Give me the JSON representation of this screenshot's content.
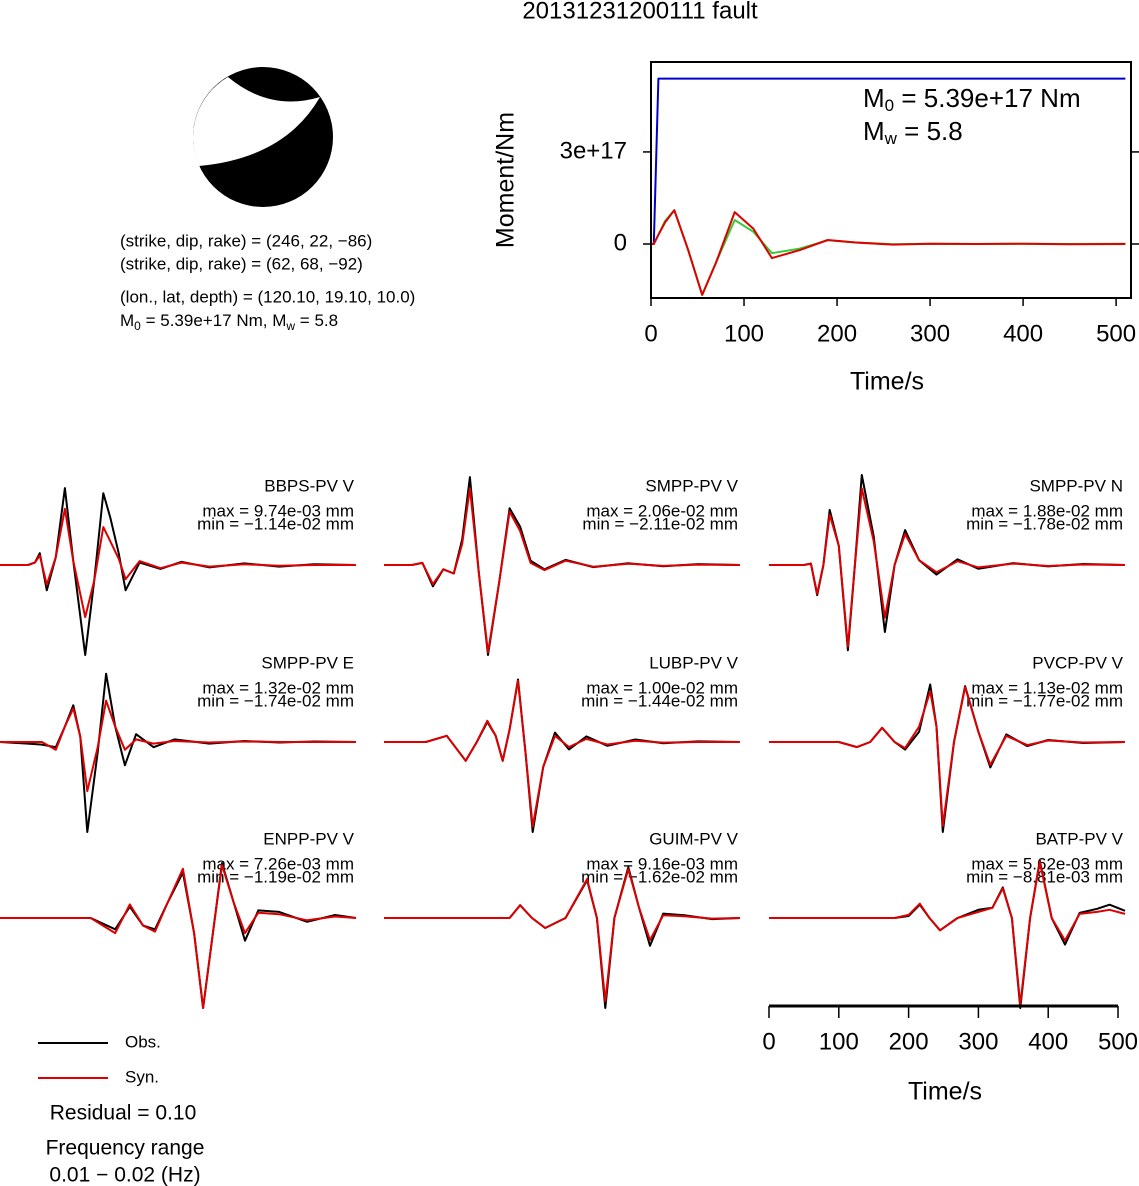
{
  "title": "20131231200111 fault",
  "focal_mechanism": {
    "planes": [
      "(strike, dip, rake) = (246, 22, −86)",
      "(strike, dip, rake) = (62, 68, −92)"
    ],
    "location": "(lon., lat, depth) = (120.10, 19.10, 10.0)",
    "magnitude": {
      "m0_symbol": "M",
      "m0_sub": "0",
      "m0_text": " = 5.39e+17 Nm, ",
      "mw_symbol": "M",
      "mw_sub": "w",
      "mw_text": " = 5.8"
    }
  },
  "legend": [
    "Obs.",
    "Syn."
  ],
  "residual": "Residual = 0.10",
  "frequency": [
    "Frequency range",
    "0.01 − 0.02 (Hz)"
  ],
  "chart_data": [
    {
      "type": "line",
      "xlabel": "Time/s",
      "ylabel": "Moment/Nm",
      "annotations": [
        {
          "symbol": "M",
          "sub": "0",
          "text": " = 5.39e+17 Nm"
        },
        {
          "symbol": "M",
          "sub": "w",
          "text": " = 5.8"
        }
      ],
      "xlim": [
        0,
        516
      ],
      "ylim": [
        -1.76e+17,
        5.93e+17
      ],
      "xticks": [
        0,
        100,
        200,
        300,
        400,
        500
      ],
      "yticks": [
        0,
        {
          "value": 3e+17,
          "label": "3e+17"
        }
      ],
      "x": [
        0,
        3,
        8,
        15,
        25,
        40,
        55,
        70,
        90,
        110,
        130,
        160,
        190,
        220,
        260,
        300,
        350,
        400,
        450,
        510
      ],
      "series": [
        {
          "color": "#0000cc",
          "values": [
            0,
            0,
            5.39e+17,
            5.39e+17,
            5.39e+17,
            5.39e+17,
            5.39e+17,
            5.39e+17,
            5.39e+17,
            5.39e+17,
            5.39e+17,
            5.39e+17,
            5.39e+17,
            5.39e+17,
            5.39e+17,
            5.39e+17,
            5.39e+17,
            5.39e+17,
            5.39e+17,
            5.39e+17
          ]
        },
        {
          "color": "#33cc33",
          "values": [
            0,
            0,
            3e+16,
            7.5e+16,
            1.1e+17,
            -2e+16,
            -1.66e+17,
            -6e+16,
            7.8e+16,
            4e+16,
            -3e+16,
            -1.5e+16,
            1.2e+16,
            5000000000000000.0,
            -1000000000000000.0,
            1000000000000000.0,
            0,
            1000000000000000.0,
            0,
            1000000000000000.0
          ]
        },
        {
          "color": "#dd0000",
          "values": [
            0,
            0,
            3e+16,
            7e+16,
            1.1e+17,
            -2e+16,
            -1.66e+17,
            -6e+16,
            1.04e+17,
            5e+16,
            -4.6e+16,
            -2e+16,
            1.3e+16,
            5000000000000000.0,
            -2000000000000000.0,
            1000000000000000.0,
            0,
            1000000000000000.0,
            -1000000000000000.0,
            0
          ]
        }
      ]
    },
    {
      "type": "line",
      "title": "BBPS-PV V",
      "annotations": [
        "max = 9.74e-03 mm",
        "min = −1.14e-02 mm"
      ],
      "xlim": [
        0,
        510
      ],
      "x": [
        0,
        40,
        50,
        57,
        67,
        80,
        93,
        105,
        122,
        135,
        148,
        158,
        170,
        180,
        200,
        230,
        260,
        300,
        350,
        400,
        450,
        510
      ],
      "series": [
        {
          "color": "#000000",
          "values": [
            0,
            0,
            0.0003,
            0.0015,
            -0.0032,
            0.001,
            0.00974,
            0.0005,
            -0.0114,
            -0.002,
            0.0091,
            0.006,
            0.0015,
            -0.0032,
            0.0003,
            -0.0005,
            0.0004,
            -0.0003,
            0.0002,
            -0.0002,
            0.0001,
            0
          ]
        },
        {
          "color": "#dd0000",
          "values": [
            0,
            0,
            0.0003,
            0.0012,
            -0.0025,
            0.001,
            0.0071,
            0.0005,
            -0.0066,
            -0.002,
            0.0048,
            0.003,
            0.0008,
            -0.0018,
            0.0005,
            -0.0004,
            0.0003,
            -0.0002,
            0.0001,
            -0.0001,
            0,
            0
          ]
        }
      ]
    },
    {
      "type": "line",
      "title": "SMPP-PV V",
      "annotations": [
        "max = 2.06e-02 mm",
        "min = −2.11e-02 mm"
      ],
      "xlim": [
        0,
        510
      ],
      "x": [
        0,
        40,
        55,
        70,
        85,
        100,
        112,
        123,
        136,
        149,
        165,
        180,
        195,
        210,
        230,
        260,
        300,
        350,
        400,
        450,
        510
      ],
      "series": [
        {
          "color": "#000000",
          "values": [
            0,
            0,
            0.0005,
            -0.005,
            -0.001,
            -0.002,
            0.006,
            0.0206,
            -0.002,
            -0.0211,
            -0.004,
            0.0133,
            0.009,
            0.001,
            -0.001,
            0.0012,
            -0.0005,
            0.0004,
            -0.0003,
            0.0002,
            0
          ]
        },
        {
          "color": "#dd0000",
          "values": [
            0,
            0,
            0.0005,
            -0.0045,
            -0.001,
            -0.002,
            0.005,
            0.018,
            -0.002,
            -0.0205,
            -0.004,
            0.0125,
            0.008,
            0.0005,
            -0.0012,
            0.001,
            -0.0004,
            0.0003,
            -0.0002,
            0.0001,
            0
          ]
        }
      ]
    },
    {
      "type": "line",
      "title": "SMPP-PV N",
      "annotations": [
        "max = 1.88e-02 mm",
        "min = −1.78e-02 mm"
      ],
      "xlim": [
        0,
        510
      ],
      "x": [
        0,
        50,
        60,
        69,
        78,
        87,
        100,
        113,
        123,
        133,
        150,
        166,
        180,
        195,
        215,
        240,
        270,
        300,
        350,
        400,
        450,
        510
      ],
      "series": [
        {
          "color": "#000000",
          "values": [
            0,
            0,
            0.0003,
            -0.0063,
            0,
            0.0115,
            0.004,
            -0.0178,
            0,
            0.0188,
            0.006,
            -0.014,
            0,
            0.0073,
            0.001,
            -0.002,
            0.0012,
            -0.0008,
            0.0004,
            -0.0003,
            0.0002,
            0
          ]
        },
        {
          "color": "#dd0000",
          "values": [
            0,
            0,
            0.0003,
            -0.006,
            0,
            0.0105,
            0.004,
            -0.017,
            0,
            0.016,
            0.005,
            -0.011,
            0,
            0.0065,
            0.001,
            -0.0015,
            0.0008,
            -0.0005,
            0.0003,
            -0.0002,
            0.0001,
            0
          ]
        }
      ]
    },
    {
      "type": "line",
      "title": "SMPP-PV E",
      "annotations": [
        "max = 1.32e-02 mm",
        "min = −1.74e-02 mm"
      ],
      "xlim": [
        0,
        510
      ],
      "x": [
        0,
        40,
        60,
        80,
        93,
        105,
        115,
        125,
        140,
        152,
        165,
        179,
        195,
        220,
        250,
        300,
        350,
        400,
        450,
        510
      ],
      "series": [
        {
          "color": "#000000",
          "values": [
            0,
            -0.0003,
            -0.0005,
            -0.001,
            0.003,
            0.0071,
            0.001,
            -0.0174,
            -0.002,
            0.0132,
            0.003,
            -0.0045,
            0.0015,
            -0.001,
            0.0005,
            -0.0003,
            0.0002,
            -0.0001,
            0.0001,
            0
          ]
        },
        {
          "color": "#dd0000",
          "values": [
            0,
            0,
            0,
            -0.0015,
            0.003,
            0.0065,
            0.001,
            -0.0095,
            -0.001,
            0.008,
            0.003,
            -0.0015,
            0.0005,
            -0.0003,
            0.0002,
            -0.0001,
            0.0001,
            0,
            0,
            0
          ]
        }
      ]
    },
    {
      "type": "line",
      "title": "LUBP-PV V",
      "annotations": [
        "max = 1.00e-02 mm",
        "min = −1.44e-02 mm"
      ],
      "xlim": [
        0,
        510
      ],
      "x": [
        0,
        60,
        90,
        117,
        133,
        148,
        160,
        170,
        180,
        192,
        203,
        213,
        228,
        245,
        265,
        290,
        320,
        360,
        400,
        450,
        510
      ],
      "series": [
        {
          "color": "#000000",
          "values": [
            0,
            0,
            0.001,
            -0.003,
            0,
            0.0032,
            0.001,
            -0.003,
            0.002,
            0.01,
            -0.002,
            -0.0144,
            -0.004,
            0.0015,
            -0.0012,
            0.0009,
            -0.0006,
            0.0004,
            -0.0002,
            0.0001,
            0
          ]
        },
        {
          "color": "#dd0000",
          "values": [
            0,
            0,
            0.001,
            -0.003,
            0,
            0.0034,
            0.001,
            -0.003,
            0.002,
            0.0098,
            -0.002,
            -0.0135,
            -0.004,
            0.001,
            -0.0008,
            0.0005,
            -0.0004,
            0.0002,
            -0.0001,
            0,
            0
          ]
        }
      ]
    },
    {
      "type": "line",
      "title": "PVCP-PV V",
      "annotations": [
        "max = 1.13e-02 mm",
        "min = −1.77e-02 mm"
      ],
      "xlim": [
        0,
        510
      ],
      "x": [
        0,
        100,
        126,
        145,
        162,
        180,
        195,
        215,
        231,
        240,
        249,
        265,
        281,
        300,
        317,
        340,
        370,
        400,
        450,
        510
      ],
      "series": [
        {
          "color": "#000000",
          "values": [
            0,
            0,
            -0.001,
            0,
            0.0028,
            0,
            -0.0015,
            0.002,
            0.0113,
            0.003,
            -0.0177,
            0,
            0.011,
            0.002,
            -0.005,
            0.0015,
            -0.0008,
            0.0004,
            -0.0002,
            0
          ]
        },
        {
          "color": "#dd0000",
          "values": [
            0,
            0,
            -0.001,
            0,
            0.0028,
            0,
            -0.0012,
            0.003,
            0.01,
            0.003,
            -0.0165,
            0,
            0.0108,
            0.002,
            -0.0045,
            0.0012,
            -0.0006,
            0.0003,
            -0.0001,
            0
          ]
        }
      ]
    },
    {
      "type": "line",
      "title": "ENPP-PV V",
      "annotations": [
        "max = 7.26e-03 mm",
        "min = −1.19e-02 mm"
      ],
      "xlim": [
        0,
        510
      ],
      "x": [
        0,
        130,
        165,
        186,
        205,
        222,
        240,
        262,
        278,
        291,
        305,
        318,
        335,
        351,
        370,
        400,
        440,
        480,
        510
      ],
      "series": [
        {
          "color": "#000000",
          "values": [
            0,
            0,
            -0.0015,
            0.0015,
            -0.001,
            -0.0015,
            0.002,
            0.006,
            -0.002,
            -0.0119,
            -0.002,
            0.00726,
            0.002,
            -0.003,
            0.001,
            0.0008,
            -0.0005,
            0.0004,
            0
          ]
        },
        {
          "color": "#dd0000",
          "values": [
            0,
            0,
            -0.002,
            0.0018,
            -0.001,
            -0.0018,
            0.002,
            0.0065,
            -0.002,
            -0.0119,
            -0.002,
            0.007,
            0.002,
            -0.002,
            0.0007,
            0.0005,
            -0.0003,
            0.0002,
            0
          ]
        }
      ]
    },
    {
      "type": "line",
      "title": "GUIM-PV V",
      "annotations": [
        "max = 9.16e-03 mm",
        "min = −1.62e-02 mm"
      ],
      "xlim": [
        0,
        510
      ],
      "x": [
        0,
        150,
        180,
        195,
        212,
        231,
        260,
        291,
        305,
        317,
        330,
        350,
        365,
        381,
        400,
        430,
        470,
        510
      ],
      "series": [
        {
          "color": "#000000",
          "values": [
            0,
            0,
            0,
            0.0023,
            0,
            -0.0018,
            0,
            0.0068,
            0,
            -0.0162,
            0,
            0.00916,
            0.002,
            -0.005,
            0.0008,
            0.0005,
            -0.0002,
            0
          ]
        },
        {
          "color": "#dd0000",
          "values": [
            0,
            0,
            0,
            0.0023,
            0,
            -0.0018,
            0,
            0.007,
            0,
            -0.015,
            0,
            0.0088,
            0.002,
            -0.004,
            0.0005,
            0.0003,
            -0.0001,
            0
          ]
        }
      ]
    },
    {
      "type": "line",
      "title": "BATP-PV V",
      "annotations": [
        "max = 5.62e-03 mm",
        "min = −8.81e-03 mm"
      ],
      "xlim": [
        0,
        510
      ],
      "xlabel": "Time/s",
      "xticks": [
        0,
        100,
        200,
        300,
        400,
        500
      ],
      "x": [
        0,
        180,
        200,
        216,
        230,
        245,
        270,
        300,
        320,
        335,
        348,
        360,
        374,
        388,
        405,
        424,
        445,
        470,
        488,
        510
      ],
      "series": [
        {
          "color": "#000000",
          "values": [
            0,
            0,
            0.0002,
            0.0013,
            0,
            -0.0012,
            0,
            0.0008,
            0.001,
            0.003,
            0,
            -0.00881,
            0,
            0.00562,
            0,
            -0.0026,
            0.0005,
            0.0009,
            0.0013,
            0.0007
          ]
        },
        {
          "color": "#dd0000",
          "values": [
            0,
            0,
            0.0003,
            0.0014,
            0,
            -0.0012,
            0,
            0.0006,
            0.001,
            0.0029,
            0,
            -0.0085,
            0,
            0.0055,
            0,
            -0.0022,
            0.0004,
            0.0006,
            0.0008,
            0.0004
          ]
        }
      ]
    }
  ]
}
